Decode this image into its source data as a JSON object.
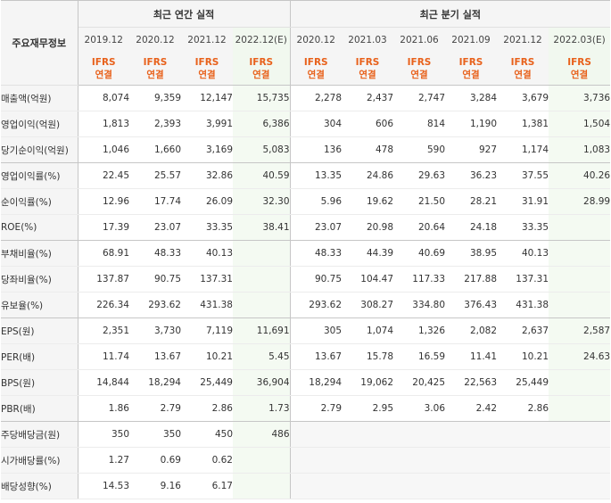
{
  "header": {
    "label_col": "주요재무정보",
    "annual_title": "최근 연간 실적",
    "quarter_title": "최근 분기 실적",
    "annual_periods": [
      "2019.12",
      "2020.12",
      "2021.12",
      "2022.12(E)"
    ],
    "quarter_periods": [
      "2020.12",
      "2021.03",
      "2021.06",
      "2021.09",
      "2021.12",
      "2022.03(E)"
    ],
    "ifrs": "IFRS",
    "consolidated": "연결"
  },
  "rows": [
    {
      "label": "매출액(억원)",
      "annual": [
        "8,074",
        "9,359",
        "12,147",
        "15,735"
      ],
      "quarter": [
        "2,278",
        "2,437",
        "2,747",
        "3,284",
        "3,679",
        "3,736"
      ]
    },
    {
      "label": "영업이익(억원)",
      "annual": [
        "1,813",
        "2,393",
        "3,991",
        "6,386"
      ],
      "quarter": [
        "304",
        "606",
        "814",
        "1,190",
        "1,381",
        "1,504"
      ]
    },
    {
      "label": "당기순이익(억원)",
      "annual": [
        "1,046",
        "1,660",
        "3,169",
        "5,083"
      ],
      "quarter": [
        "136",
        "478",
        "590",
        "927",
        "1,174",
        "1,083"
      ]
    },
    {
      "label": "영업이익률(%)",
      "annual": [
        "22.45",
        "25.57",
        "32.86",
        "40.59"
      ],
      "quarter": [
        "13.35",
        "24.86",
        "29.63",
        "36.23",
        "37.55",
        "40.26"
      ]
    },
    {
      "label": "순이익률(%)",
      "annual": [
        "12.96",
        "17.74",
        "26.09",
        "32.30"
      ],
      "quarter": [
        "5.96",
        "19.62",
        "21.50",
        "28.21",
        "31.91",
        "28.99"
      ]
    },
    {
      "label": "ROE(%)",
      "annual": [
        "17.39",
        "23.07",
        "33.35",
        "38.41"
      ],
      "quarter": [
        "23.07",
        "20.98",
        "20.64",
        "24.18",
        "33.35",
        ""
      ]
    },
    {
      "label": "부채비율(%)",
      "annual": [
        "68.91",
        "48.33",
        "40.13",
        ""
      ],
      "quarter": [
        "48.33",
        "44.39",
        "40.69",
        "38.95",
        "40.13",
        ""
      ]
    },
    {
      "label": "당좌비율(%)",
      "annual": [
        "137.87",
        "90.75",
        "137.31",
        ""
      ],
      "quarter": [
        "90.75",
        "104.47",
        "117.33",
        "217.88",
        "137.31",
        ""
      ]
    },
    {
      "label": "유보율(%)",
      "annual": [
        "226.34",
        "293.62",
        "431.38",
        ""
      ],
      "quarter": [
        "293.62",
        "308.27",
        "334.80",
        "376.43",
        "431.38",
        ""
      ]
    },
    {
      "label": "EPS(원)",
      "annual": [
        "2,351",
        "3,730",
        "7,119",
        "11,691"
      ],
      "quarter": [
        "305",
        "1,074",
        "1,326",
        "2,082",
        "2,637",
        "2,587"
      ]
    },
    {
      "label": "PER(배)",
      "annual": [
        "11.74",
        "13.67",
        "10.21",
        "5.45"
      ],
      "quarter": [
        "13.67",
        "15.78",
        "16.59",
        "11.41",
        "10.21",
        "24.63"
      ]
    },
    {
      "label": "BPS(원)",
      "annual": [
        "14,844",
        "18,294",
        "25,449",
        "36,904"
      ],
      "quarter": [
        "18,294",
        "19,062",
        "20,425",
        "22,563",
        "25,449",
        ""
      ]
    },
    {
      "label": "PBR(배)",
      "annual": [
        "1.86",
        "2.79",
        "2.86",
        "1.73"
      ],
      "quarter": [
        "2.79",
        "2.95",
        "3.06",
        "2.42",
        "2.86",
        ""
      ]
    },
    {
      "label": "주당배당금(원)",
      "annual": [
        "350",
        "350",
        "450",
        "486"
      ],
      "quarter": null
    },
    {
      "label": "시가배당률(%)",
      "annual": [
        "1.27",
        "0.69",
        "0.62",
        ""
      ],
      "quarter": null
    },
    {
      "label": "배당성향(%)",
      "annual": [
        "14.53",
        "9.16",
        "6.17",
        ""
      ],
      "quarter": null
    }
  ]
}
